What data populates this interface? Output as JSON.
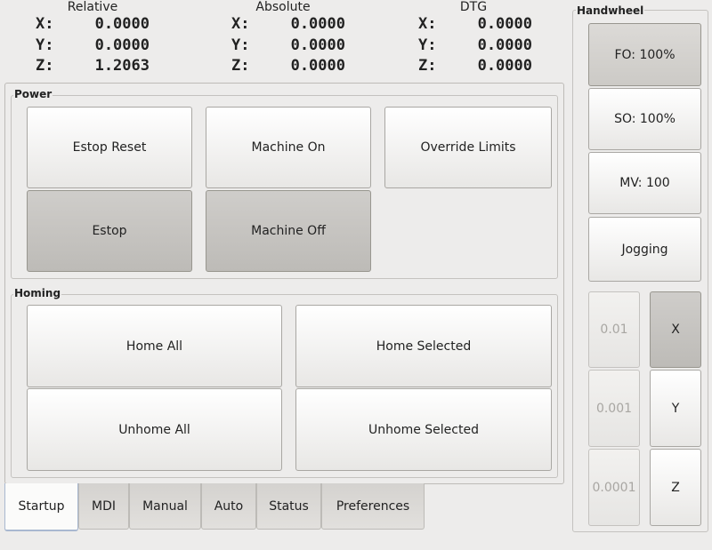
{
  "dro": [
    {
      "title": "Relative",
      "rows": [
        {
          "axis": "X:",
          "value": "0.0000"
        },
        {
          "axis": "Y:",
          "value": "0.0000"
        },
        {
          "axis": "Z:",
          "value": "1.2063"
        }
      ]
    },
    {
      "title": "Absolute",
      "rows": [
        {
          "axis": "X:",
          "value": "0.0000"
        },
        {
          "axis": "Y:",
          "value": "0.0000"
        },
        {
          "axis": "Z:",
          "value": "0.0000"
        }
      ]
    },
    {
      "title": "DTG",
      "rows": [
        {
          "axis": "X:",
          "value": "0.0000"
        },
        {
          "axis": "Y:",
          "value": "0.0000"
        },
        {
          "axis": "Z:",
          "value": "0.0000"
        }
      ]
    }
  ],
  "power": {
    "title": "Power",
    "estop_reset": "Estop Reset",
    "machine_on": "Machine On",
    "override_limits": "Override Limits",
    "estop": "Estop",
    "machine_off": "Machine Off"
  },
  "homing": {
    "title": "Homing",
    "home_all": "Home All",
    "home_selected": "Home Selected",
    "unhome_all": "Unhome All",
    "unhome_selected": "Unhome Selected"
  },
  "tabs": [
    {
      "label": "Startup",
      "active": true
    },
    {
      "label": "MDI"
    },
    {
      "label": "Manual"
    },
    {
      "label": "Auto"
    },
    {
      "label": "Status"
    },
    {
      "label": "Preferences"
    }
  ],
  "handwheel": {
    "title": "Handwheel",
    "fo": "FO: 100%",
    "so": "SO: 100%",
    "mv": "MV: 100",
    "jogging": "Jogging",
    "increments": [
      "0.01",
      "0.001",
      "0.0001"
    ],
    "axes": [
      "X",
      "Y",
      "Z"
    ],
    "selected_axis": "X"
  }
}
